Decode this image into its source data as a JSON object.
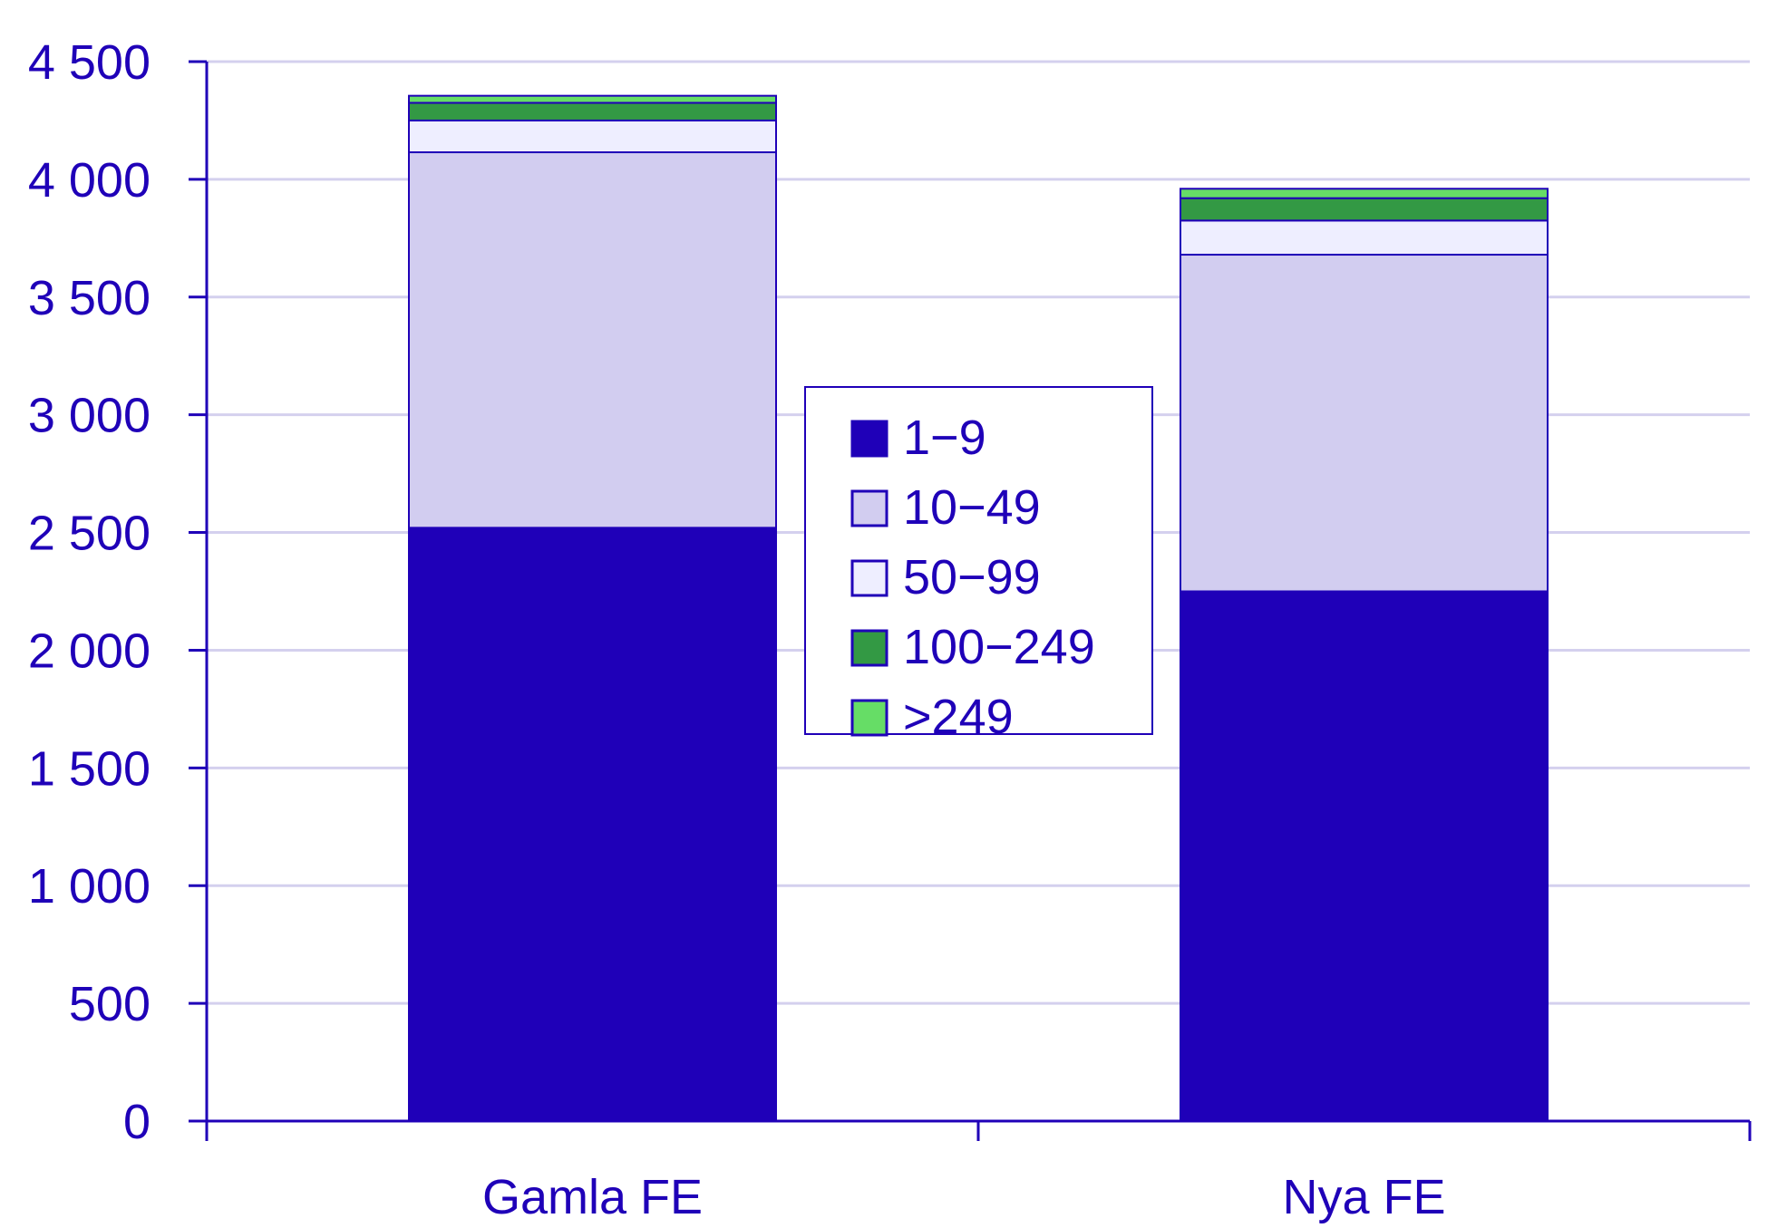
{
  "chart_data": {
    "type": "bar",
    "stacked": true,
    "categories": [
      "Gamla FE",
      "Nya FE"
    ],
    "series": [
      {
        "name": "1−9",
        "values": [
          2520,
          2250
        ],
        "color": "#1f00b8"
      },
      {
        "name": "10−49",
        "values": [
          1595,
          1430
        ],
        "color": "#d2cdf0"
      },
      {
        "name": "50−99",
        "values": [
          135,
          145
        ],
        "color": "#eeeeff"
      },
      {
        "name": "100−249",
        "values": [
          75,
          95
        ],
        "color": "#339944"
      },
      {
        "name": ">249",
        "values": [
          30,
          40
        ],
        "color": "#66dd66"
      }
    ],
    "ylim": [
      0,
      4500
    ],
    "yticks": [
      0,
      500,
      1000,
      1500,
      2000,
      2500,
      3000,
      3500,
      4000,
      4500
    ],
    "ytick_labels": [
      "0",
      "500",
      "1 000",
      "1 500",
      "2 000",
      "2 500",
      "3 000",
      "3 500",
      "4 000",
      "4 500"
    ],
    "title": "",
    "xlabel": "",
    "ylabel": "",
    "grid": true,
    "legend_position": "center",
    "colors": {
      "axis": "#1f00b8",
      "grid": "#d4d0ee",
      "text": "#1f00b8"
    }
  }
}
